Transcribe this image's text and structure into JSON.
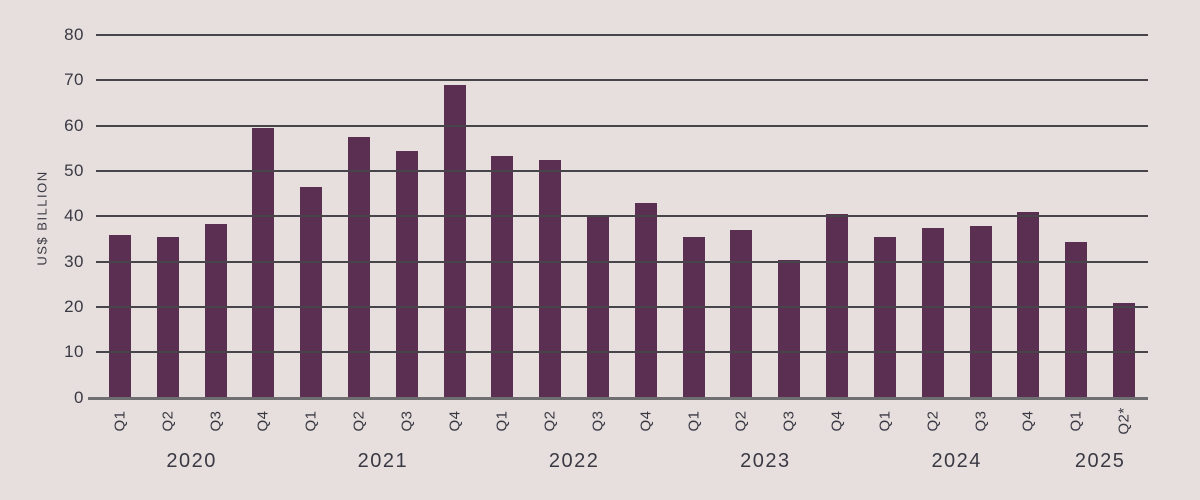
{
  "chart_data": {
    "type": "bar",
    "title": "",
    "ylabel": "US$ BILLION",
    "xlabel": "",
    "ylim": [
      0,
      80
    ],
    "yticks": [
      0,
      10,
      20,
      30,
      40,
      50,
      60,
      70,
      80
    ],
    "grid": true,
    "legend": "none",
    "colors": {
      "bar": "#5a2f52",
      "background": "#e6dfde",
      "gridline": "#47454a",
      "baseline": "#6f6e70",
      "text": "#3a3943"
    },
    "groups": [
      {
        "year": "2020",
        "quarters": [
          "Q1",
          "Q2",
          "Q3",
          "Q4"
        ],
        "values": [
          36,
          35.5,
          38.5,
          59.5
        ]
      },
      {
        "year": "2021",
        "quarters": [
          "Q1",
          "Q2",
          "Q3",
          "Q4"
        ],
        "values": [
          46.5,
          57.5,
          54.5,
          69
        ]
      },
      {
        "year": "2022",
        "quarters": [
          "Q1",
          "Q2",
          "Q3",
          "Q4"
        ],
        "values": [
          53.5,
          52.5,
          40,
          43
        ]
      },
      {
        "year": "2023",
        "quarters": [
          "Q1",
          "Q2",
          "Q3",
          "Q4"
        ],
        "values": [
          35.5,
          37,
          30.5,
          40.5
        ]
      },
      {
        "year": "2024",
        "quarters": [
          "Q1",
          "Q2",
          "Q3",
          "Q4"
        ],
        "values": [
          35.5,
          37.5,
          38,
          41
        ]
      },
      {
        "year": "2025",
        "quarters": [
          "Q1",
          "Q2*"
        ],
        "values": [
          34.5,
          21
        ]
      }
    ]
  }
}
